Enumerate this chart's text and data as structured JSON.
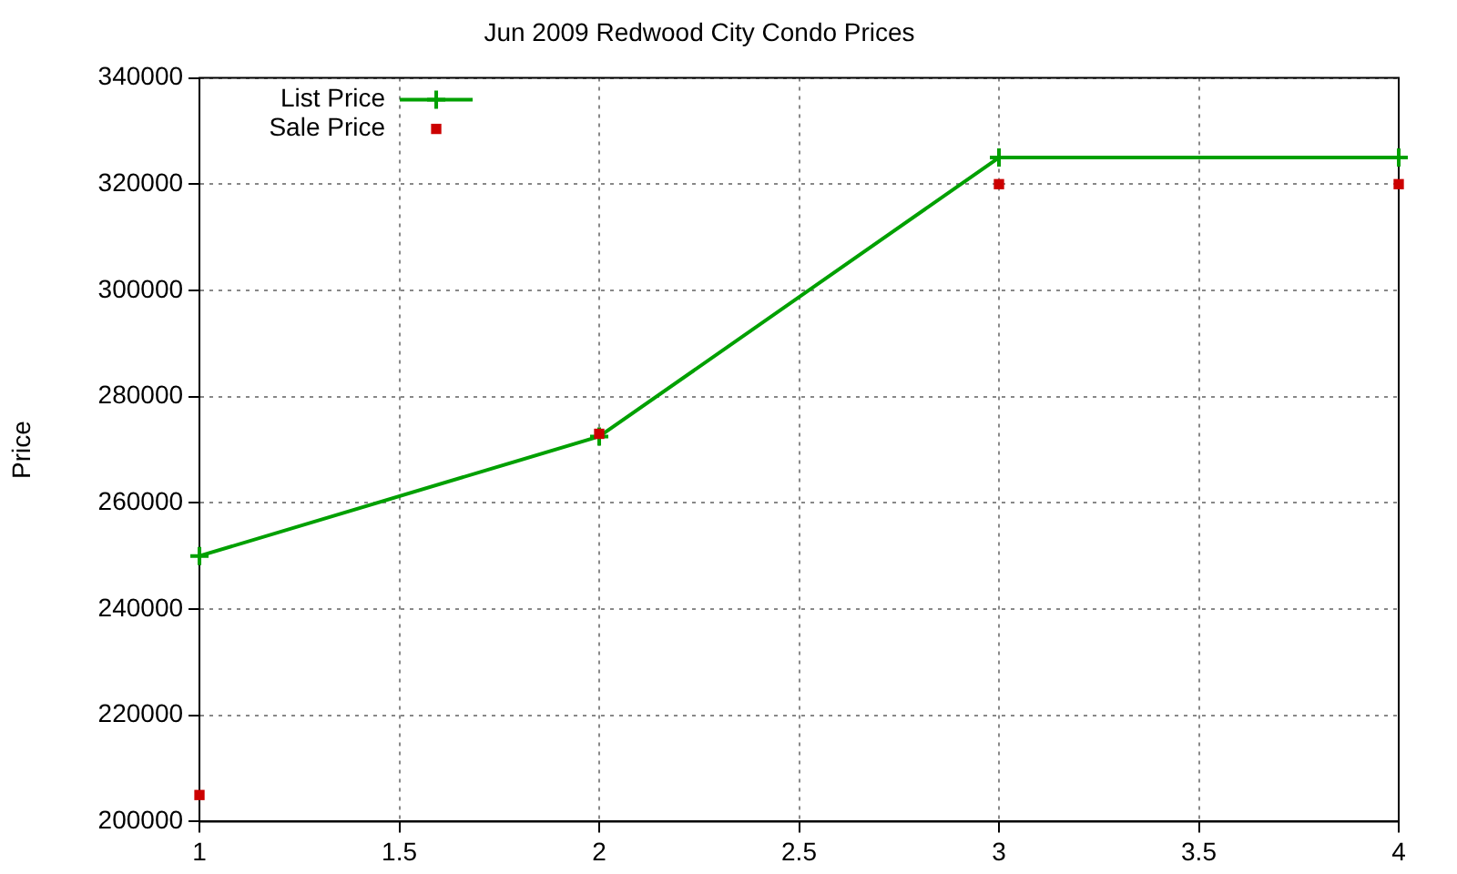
{
  "chart_data": {
    "type": "line",
    "title": "Jun 2009 Redwood City Condo Prices",
    "ylabel": "Price",
    "x": [
      1,
      2,
      3,
      4
    ],
    "series": [
      {
        "name": "List Price",
        "color": "#00a000",
        "marker": "cross",
        "values": [
          250000,
          272500,
          325000,
          325000
        ]
      },
      {
        "name": "Sale Price",
        "type": "scatter",
        "color": "#cc0000",
        "marker": "square",
        "values": [
          205000,
          273000,
          320000,
          320000
        ]
      }
    ],
    "xlim": [
      1,
      4
    ],
    "xticks": [
      1,
      1.5,
      2,
      2.5,
      3,
      3.5,
      4
    ],
    "ylim": [
      200000,
      340000
    ],
    "yticks": [
      200000,
      220000,
      240000,
      260000,
      280000,
      300000,
      320000,
      340000
    ],
    "grid": true,
    "legend": "top left"
  }
}
